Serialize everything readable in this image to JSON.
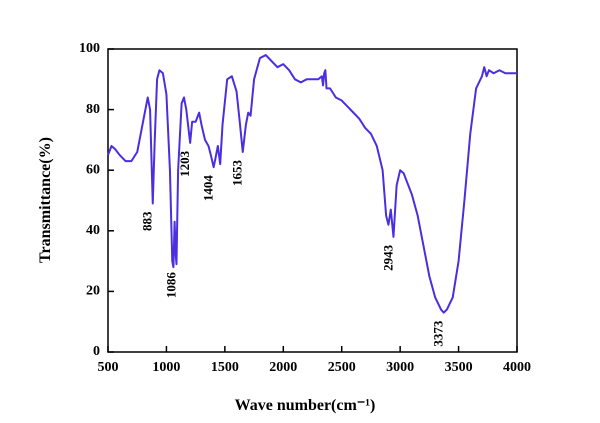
{
  "chart_data": {
    "type": "line",
    "xlabel": "Wave number(cm⁻¹)",
    "ylabel": "Transmittance(%)",
    "color": "#4a2fe0",
    "x": [
      500,
      530,
      560,
      600,
      650,
      700,
      750,
      800,
      840,
      860,
      883,
      900,
      920,
      940,
      970,
      1000,
      1030,
      1050,
      1060,
      1070,
      1080,
      1086,
      1100,
      1130,
      1150,
      1170,
      1203,
      1220,
      1250,
      1280,
      1300,
      1330,
      1360,
      1380,
      1404,
      1420,
      1440,
      1460,
      1480,
      1520,
      1560,
      1600,
      1630,
      1653,
      1680,
      1700,
      1720,
      1750,
      1800,
      1850,
      1900,
      1950,
      2000,
      2050,
      2100,
      2150,
      2200,
      2250,
      2300,
      2330,
      2340,
      2350,
      2360,
      2370,
      2400,
      2450,
      2500,
      2550,
      2600,
      2650,
      2700,
      2750,
      2800,
      2850,
      2880,
      2900,
      2920,
      2943,
      2970,
      3000,
      3030,
      3100,
      3150,
      3200,
      3250,
      3300,
      3350,
      3373,
      3400,
      3450,
      3500,
      3550,
      3600,
      3650,
      3700,
      3720,
      3740,
      3760,
      3800,
      3850,
      3900,
      3950,
      4000
    ],
    "values": [
      65,
      68,
      67,
      65,
      63,
      63,
      66,
      76,
      84,
      80,
      49,
      70,
      90,
      93,
      92,
      85,
      60,
      30,
      28,
      43,
      32,
      29,
      60,
      82,
      84,
      80,
      69,
      76,
      76,
      79,
      75,
      70,
      68,
      65,
      61,
      64,
      68,
      62,
      75,
      90,
      91,
      86,
      75,
      66,
      75,
      79,
      78,
      90,
      97,
      98,
      96,
      94,
      95,
      93,
      90,
      89,
      90,
      90,
      90,
      91,
      88,
      92,
      93,
      87,
      87,
      84,
      83,
      81,
      79,
      77,
      74,
      72,
      68,
      60,
      45,
      42,
      47,
      38,
      55,
      60,
      59,
      52,
      45,
      35,
      25,
      18,
      14,
      13,
      14,
      18,
      30,
      50,
      72,
      87,
      91,
      94,
      91,
      93,
      92,
      93,
      92,
      92,
      92
    ],
    "annotations": [
      "883",
      "1086",
      "1203",
      "1404",
      "1653",
      "2943",
      "3373"
    ],
    "xlim": [
      500,
      4000
    ],
    "xticks": [
      500,
      1000,
      1500,
      2000,
      2500,
      3000,
      3500,
      4000
    ],
    "ylim": [
      0,
      100
    ],
    "yticks": [
      0,
      20,
      40,
      60,
      80,
      100
    ]
  }
}
